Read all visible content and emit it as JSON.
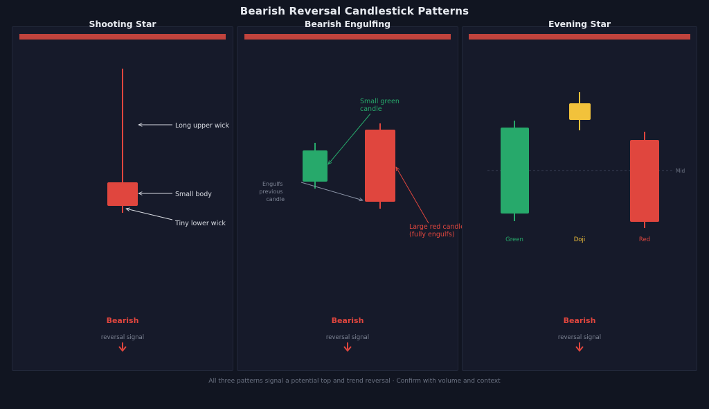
{
  "title": "Bearish Reversal Candlestick Patterns",
  "colors": {
    "background": "#111521",
    "panel": "#161a2a",
    "bearish": "#e0463e",
    "bullish": "#27a96b",
    "doji": "#f2c23b",
    "header_bar": "#c0433d"
  },
  "panels": [
    {
      "title": "Shooting Star",
      "annotations": {
        "upper_wick": "Long upper wick",
        "body": "Small body",
        "lower_wick": "Tiny lower wick"
      },
      "signal": "Bearish",
      "signal_sub": "reversal signal",
      "arrow": "down-arrow-icon"
    },
    {
      "title": "Bearish Engulfing",
      "annotations": {
        "green_line1": "Small green",
        "green_line2": "candle",
        "red_line1": "Large red candle",
        "red_line2": "(fully engulfs)",
        "engulf_line1": "Engulfs",
        "engulf_line2": "previous",
        "engulf_line3": "candle"
      },
      "signal": "Bearish",
      "signal_sub": "reversal signal",
      "arrow": "down-arrow-icon"
    },
    {
      "title": "Evening Star",
      "annotations": {
        "mid": "Mid",
        "green": "Green",
        "doji": "Doji",
        "red": "Red"
      },
      "signal": "Bearish",
      "signal_sub": "reversal signal",
      "arrow": "down-arrow-icon"
    }
  ],
  "footer": "All three patterns signal a potential top and trend reversal  ·  Confirm with volume and context"
}
